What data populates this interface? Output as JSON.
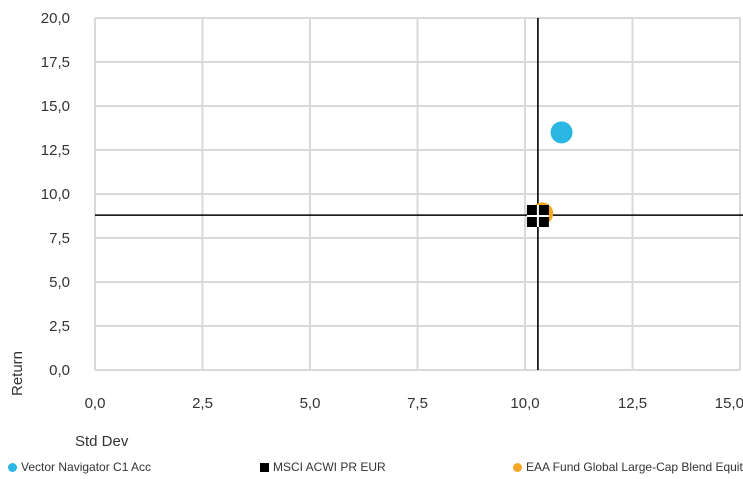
{
  "chart_data": {
    "type": "scatter",
    "xlabel": "Std Dev",
    "ylabel": "Return",
    "xlim": [
      0,
      15
    ],
    "ylim": [
      0,
      20
    ],
    "x_ticks": [
      "0,0",
      "2,5",
      "5,0",
      "7,5",
      "10,0",
      "12,5",
      "15,0"
    ],
    "y_ticks": [
      "0,0",
      "2,5",
      "5,0",
      "7,5",
      "10,0",
      "12,5",
      "15,0",
      "17,5",
      "20,0"
    ],
    "grid": true,
    "legend_position": "bottom",
    "crosshair": {
      "x": 10.3,
      "y": 8.8
    },
    "series": [
      {
        "name": "Vector Navigator C1 Acc",
        "marker": "circle",
        "color": "#2bb7e3",
        "x": 10.85,
        "y": 13.5
      },
      {
        "name": "MSCI ACWI PR EUR",
        "marker": "square",
        "color": "#000000",
        "x": 10.3,
        "y": 8.75
      },
      {
        "name": "EAA Fund Global Large-Cap Blend Equity",
        "marker": "circle",
        "color": "#f5a623",
        "x": 10.4,
        "y": 8.9
      }
    ]
  }
}
